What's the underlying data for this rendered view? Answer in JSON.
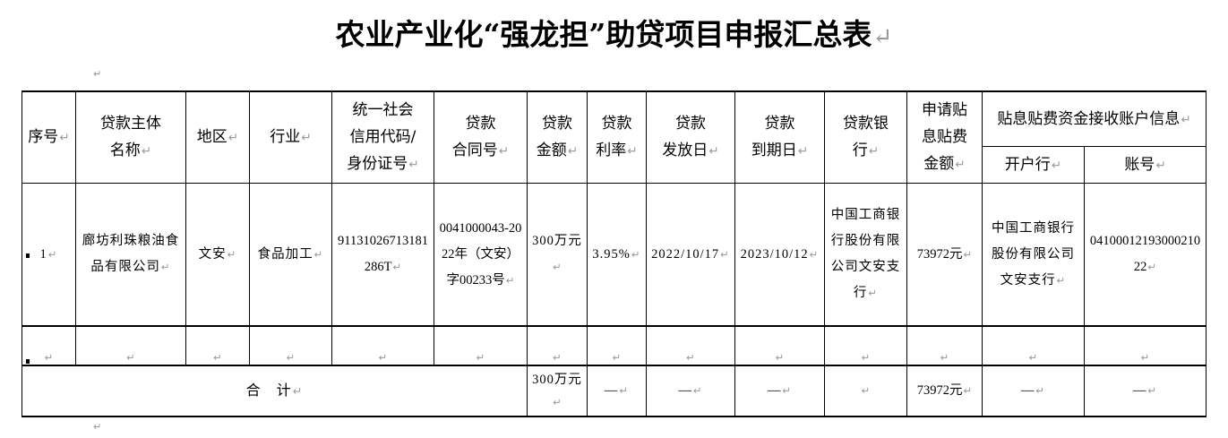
{
  "title": "农业产业化“强龙担”助贷项目申报汇总表",
  "headers": {
    "seq": "序号",
    "borrower": "贷款主体\n名称",
    "region": "地区",
    "industry": "行业",
    "credit_code": "统一社会\n信用代码/\n身份证号",
    "contract": "贷款\n合同号",
    "amount": "贷款\n金额",
    "rate": "贷款\n利率",
    "issue_date": "贷款\n发放日",
    "due_date": "贷款\n到期日",
    "bank": "贷款银\n行",
    "subsidy": "申请贴\n息贴费\n金额",
    "account_group": "贴息贴费资金接收账户信息",
    "open_bank": "开户行",
    "account_no": "账号"
  },
  "rows": [
    {
      "seq": "1",
      "borrower": "廊坊利珠粮油食品有限公司",
      "region": "文安",
      "industry": "食品加工",
      "credit_code": "91131026713181286T",
      "contract": "0041000043-2022年（文安）字00233号",
      "amount": "300万元",
      "rate": "3.95%",
      "issue_date": "2022/10/17",
      "due_date": "2023/10/12",
      "bank": "中国工商银行股份有限公司文安支行",
      "subsidy": "73972元",
      "open_bank": "中国工商银行股份有限公司文安支行",
      "account_no": "0410001219300021022"
    }
  ],
  "total": {
    "label": "合　计",
    "amount": "300万元",
    "rate": "—",
    "issue_date": "—",
    "due_date": "—",
    "bank": "",
    "subsidy": "73972元",
    "open_bank": "—",
    "account_no": "—"
  }
}
